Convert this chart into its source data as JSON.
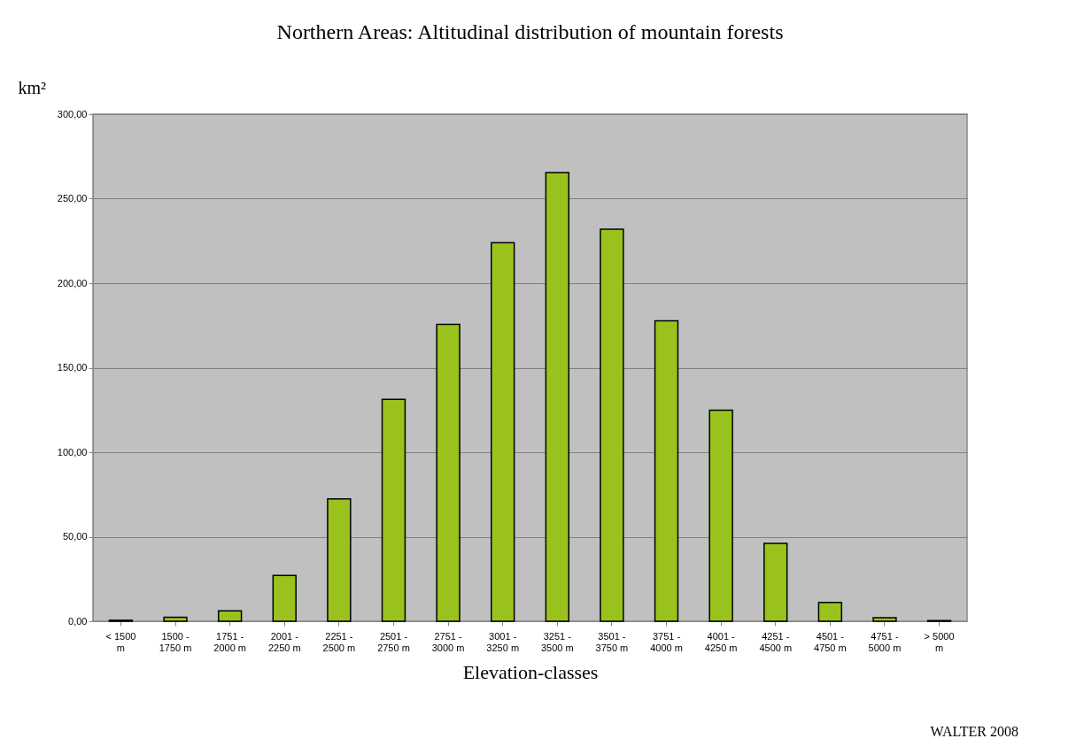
{
  "chart_data": {
    "type": "bar",
    "title": "Northern Areas: Altitudinal distribution of mountain forests",
    "xlabel": "Elevation-classes",
    "ylabel": "km²",
    "categories": [
      "< 1500 m",
      "1500 - 1750 m",
      "1751 - 2000 m",
      "2001 - 2250 m",
      "2251 - 2500 m",
      "2501 - 2750 m",
      "2751 - 3000 m",
      "3001 - 3250 m",
      "3251 - 3500 m",
      "3501 - 3750 m",
      "3751 - 4000 m",
      "4001 - 4250 m",
      "4251 - 4500 m",
      "4501 - 4750 m",
      "4751 - 5000 m",
      "> 5000 m"
    ],
    "values": [
      0.6,
      2.3,
      6.2,
      27.1,
      72.4,
      131.3,
      175.7,
      224.0,
      265.4,
      231.9,
      177.7,
      124.9,
      46.1,
      11.1,
      2.1,
      0.4
    ],
    "color": "#99c31c",
    "ylim": [
      0,
      300
    ],
    "yticks": [
      {
        "value": 0,
        "label": "0,00"
      },
      {
        "value": 50,
        "label": "50,00"
      },
      {
        "value": 100,
        "label": "100,00"
      },
      {
        "value": 150,
        "label": "150,00"
      },
      {
        "value": 200,
        "label": "200,00"
      },
      {
        "value": 250,
        "label": "250,00"
      },
      {
        "value": 300,
        "label": "300,00"
      }
    ],
    "grid": "y",
    "annotations": [
      "WALTER 2008"
    ]
  }
}
